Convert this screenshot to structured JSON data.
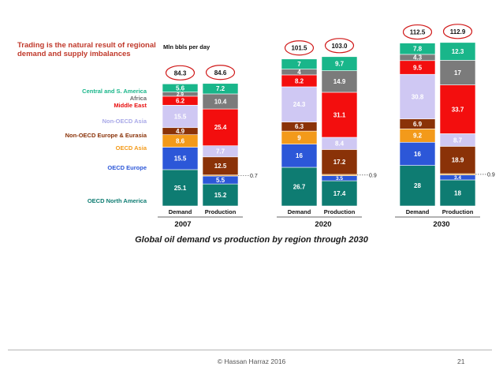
{
  "headline": "Trading is the natural result of regional demand and supply imbalances",
  "units_label": "Mln bbls per day",
  "caption": "Global oil demand vs production by region through 2030",
  "footer": {
    "text": "© Hassan Harraz 2016",
    "slide_number": "21"
  },
  "chart_data": {
    "type": "bar",
    "stacked": true,
    "ylabel": "Mln bbls per day",
    "groups": [
      "2007",
      "2020",
      "2030"
    ],
    "bar_labels": [
      "Demand",
      "Production"
    ],
    "legend_placement": "left",
    "colors": {
      "OECD North America": "#0e7c72",
      "OECD Europe": "#2c57d8",
      "OECD Asia": "#f39a1a",
      "Non-OECD Europe & Eurasia": "#8a3208",
      "Non-OECD Asia": "#cfc8f3",
      "Middle East": "#f30e0e",
      "Africa": "#7b7b7b",
      "Central and S. America": "#19b68a"
    },
    "legend_colors": {
      "Central and S. America": "#19b68a",
      "Africa": "#6b6b6b",
      "Middle East": "#e80f0f",
      "Non-OECD Asia": "#a9a9e8",
      "Non-OECD Europe & Eurasia": "#8a3208",
      "OECD Asia": "#f39a1a",
      "OECD Europe": "#2c57d8",
      "OECD North America": "#0e7c72"
    },
    "legend_order": [
      "Central and S. America",
      "Africa",
      "Middle East",
      "Non-OECD Asia",
      "Non-OECD Europe & Eurasia",
      "OECD Asia",
      "OECD Europe",
      "OECD North America"
    ],
    "bars": [
      {
        "year": "2007",
        "label": "Demand",
        "total": "84.3",
        "segments": [
          {
            "region": "OECD North America",
            "value": 25.1,
            "label": "25.1"
          },
          {
            "region": "OECD Europe",
            "value": 15.5,
            "label": "15.5"
          },
          {
            "region": "OECD Asia",
            "value": 8.6,
            "label": "8.6"
          },
          {
            "region": "Non-OECD Europe & Eurasia",
            "value": 4.9,
            "label": "4.9"
          },
          {
            "region": "Non-OECD Asia",
            "value": 15.5,
            "label": "15.5"
          },
          {
            "region": "Middle East",
            "value": 6.2,
            "label": "6.2"
          },
          {
            "region": "Africa",
            "value": 2.9,
            "label": "2.9"
          },
          {
            "region": "Central and S. America",
            "value": 5.6,
            "label": "5.6"
          }
        ]
      },
      {
        "year": "2007",
        "label": "Production",
        "total": "84.6",
        "segments": [
          {
            "region": "OECD North America",
            "value": 15.2,
            "label": "15.2"
          },
          {
            "region": "OECD Europe",
            "value": 5.5,
            "label": "5.5"
          },
          {
            "region": "OECD Asia",
            "value": 0.7,
            "label": "0.7",
            "outside": true
          },
          {
            "region": "Non-OECD Europe & Eurasia",
            "value": 12.5,
            "label": "12.5"
          },
          {
            "region": "Non-OECD Asia",
            "value": 7.7,
            "label": "7.7"
          },
          {
            "region": "Middle East",
            "value": 25.4,
            "label": "25.4"
          },
          {
            "region": "Africa",
            "value": 10.4,
            "label": "10.4"
          },
          {
            "region": "Central and S. America",
            "value": 7.2,
            "label": "7.2"
          }
        ]
      },
      {
        "year": "2020",
        "label": "Demand",
        "total": "101.5",
        "segments": [
          {
            "region": "OECD North America",
            "value": 26.7,
            "label": "26.7"
          },
          {
            "region": "OECD Europe",
            "value": 16,
            "label": "16"
          },
          {
            "region": "OECD Asia",
            "value": 9,
            "label": "9"
          },
          {
            "region": "Non-OECD Europe & Eurasia",
            "value": 6.3,
            "label": "6.3"
          },
          {
            "region": "Non-OECD Asia",
            "value": 24.3,
            "label": "24.3"
          },
          {
            "region": "Middle East",
            "value": 8.2,
            "label": "8.2"
          },
          {
            "region": "Africa",
            "value": 4,
            "label": "4"
          },
          {
            "region": "Central and S. America",
            "value": 7,
            "label": "7"
          }
        ]
      },
      {
        "year": "2020",
        "label": "Production",
        "total": "103.0",
        "segments": [
          {
            "region": "OECD North America",
            "value": 17.4,
            "label": "17.4"
          },
          {
            "region": "OECD Europe",
            "value": 3.5,
            "label": "3.5"
          },
          {
            "region": "OECD Asia",
            "value": 0.9,
            "label": "0.9",
            "outside": true
          },
          {
            "region": "Non-OECD Europe & Eurasia",
            "value": 17.2,
            "label": "17.2"
          },
          {
            "region": "Non-OECD Asia",
            "value": 8.4,
            "label": "8.4"
          },
          {
            "region": "Middle East",
            "value": 31.1,
            "label": "31.1"
          },
          {
            "region": "Africa",
            "value": 14.9,
            "label": "14.9"
          },
          {
            "region": "Central and S. America",
            "value": 9.7,
            "label": "9.7"
          }
        ]
      },
      {
        "year": "2030",
        "label": "Demand",
        "total": "112.5",
        "segments": [
          {
            "region": "OECD North America",
            "value": 28,
            "label": "28"
          },
          {
            "region": "OECD Europe",
            "value": 16,
            "label": "16"
          },
          {
            "region": "OECD Asia",
            "value": 9.2,
            "label": "9.2"
          },
          {
            "region": "Non-OECD Europe & Eurasia",
            "value": 6.9,
            "label": "6.9"
          },
          {
            "region": "Non-OECD Asia",
            "value": 30.8,
            "label": "30.8"
          },
          {
            "region": "Middle East",
            "value": 9.5,
            "label": "9.5"
          },
          {
            "region": "Africa",
            "value": 4.3,
            "label": "4.3"
          },
          {
            "region": "Central and S. America",
            "value": 7.8,
            "label": "7.8"
          }
        ]
      },
      {
        "year": "2030",
        "label": "Production",
        "total": "112.9",
        "segments": [
          {
            "region": "OECD North America",
            "value": 18,
            "label": "18"
          },
          {
            "region": "OECD Europe",
            "value": 3.4,
            "label": "3.4"
          },
          {
            "region": "OECD Asia",
            "value": 0.9,
            "label": "0.9",
            "outside": true
          },
          {
            "region": "Non-OECD Europe & Eurasia",
            "value": 18.9,
            "label": "18.9"
          },
          {
            "region": "Non-OECD Asia",
            "value": 8.7,
            "label": "8.7"
          },
          {
            "region": "Middle East",
            "value": 33.7,
            "label": "33.7"
          },
          {
            "region": "Africa",
            "value": 17,
            "label": "17"
          },
          {
            "region": "Central and S. America",
            "value": 12.3,
            "label": "12.3"
          }
        ]
      }
    ]
  }
}
